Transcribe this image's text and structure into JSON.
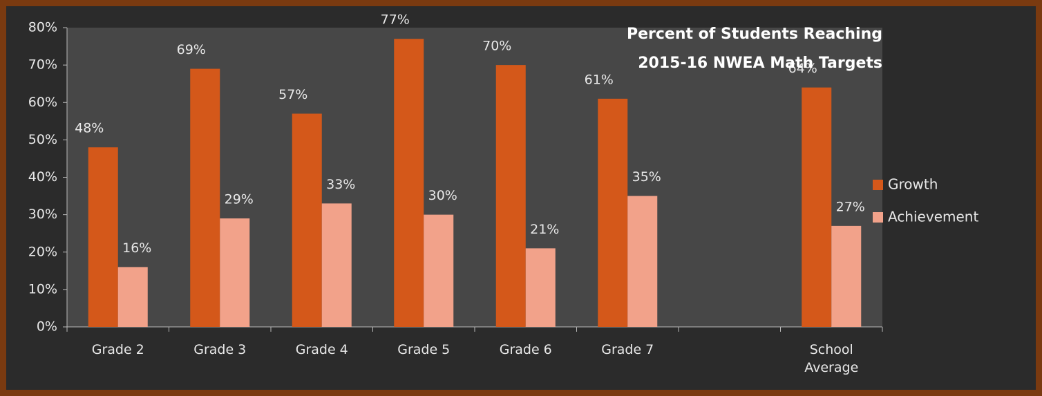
{
  "chart_data": {
    "type": "bar",
    "title": [
      "Percent of Students Reaching",
      "2015-16 NWEA Math Targets"
    ],
    "categories": [
      "Grade 2",
      "Grade 3",
      "Grade 4",
      "Grade 5",
      "Grade 6",
      "Grade 7",
      null,
      "School Average"
    ],
    "series": [
      {
        "name": "Growth",
        "color": "#d4581a",
        "values": [
          48,
          69,
          57,
          77,
          70,
          61,
          null,
          64
        ],
        "value_labels": [
          "48%",
          "69%",
          "57%",
          "77%",
          "70%",
          "61%",
          null,
          "64%"
        ]
      },
      {
        "name": "Achievement",
        "color": "#f2a28a",
        "values": [
          16,
          29,
          33,
          30,
          21,
          35,
          null,
          27
        ],
        "value_labels": [
          "16%",
          "29%",
          "33%",
          "30%",
          "21%",
          "35%",
          null,
          "27%"
        ]
      }
    ],
    "ylim": [
      0,
      80
    ],
    "yticks": [
      {
        "value": 0,
        "label": "0%"
      },
      {
        "value": 10,
        "label": "10%"
      },
      {
        "value": 20,
        "label": "20%"
      },
      {
        "value": 30,
        "label": "30%"
      },
      {
        "value": 40,
        "label": "40%"
      },
      {
        "value": 50,
        "label": "50%"
      },
      {
        "value": 60,
        "label": "60%"
      },
      {
        "value": 70,
        "label": "70%"
      },
      {
        "value": 80,
        "label": "80%"
      }
    ],
    "legend": "right"
  }
}
